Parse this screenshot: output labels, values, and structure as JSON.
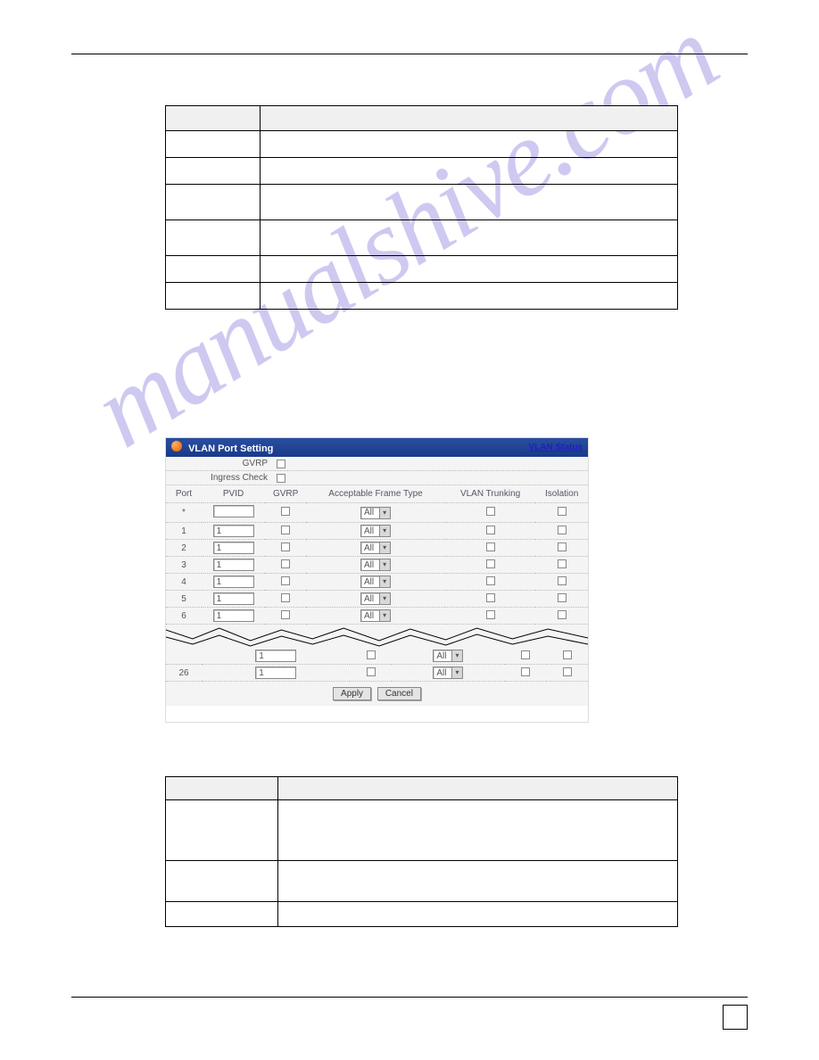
{
  "watermark": "manualshive.com",
  "screenshot": {
    "title": "VLAN Port Setting",
    "status_link": "VLAN Status",
    "gvrp_label": "GVRP",
    "ingress_label": "Ingress Check",
    "col_port": "Port",
    "col_pvid": "PVID",
    "col_gvrp": "GVRP",
    "col_frame": "Acceptable Frame Type",
    "col_trunk": "VLAN Trunking",
    "col_iso": "Isolation",
    "frame_option": "All",
    "rows": [
      {
        "port": "*",
        "pvid": ""
      },
      {
        "port": "1",
        "pvid": "1"
      },
      {
        "port": "2",
        "pvid": "1"
      },
      {
        "port": "3",
        "pvid": "1"
      },
      {
        "port": "4",
        "pvid": "1"
      },
      {
        "port": "5",
        "pvid": "1"
      },
      {
        "port": "6",
        "pvid": "1"
      }
    ],
    "rows_bottom": [
      {
        "port": "",
        "pvid": "1"
      },
      {
        "port": "26",
        "pvid": "1"
      }
    ],
    "apply": "Apply",
    "cancel": "Cancel"
  },
  "colors": {
    "header_gradient_top": "#2a4ea0",
    "header_gradient_bottom": "#1a3a8a",
    "link": "#2020c0",
    "body_bg": "#f4f4f4",
    "watermark": "rgba(80,60,200,0.28)"
  }
}
